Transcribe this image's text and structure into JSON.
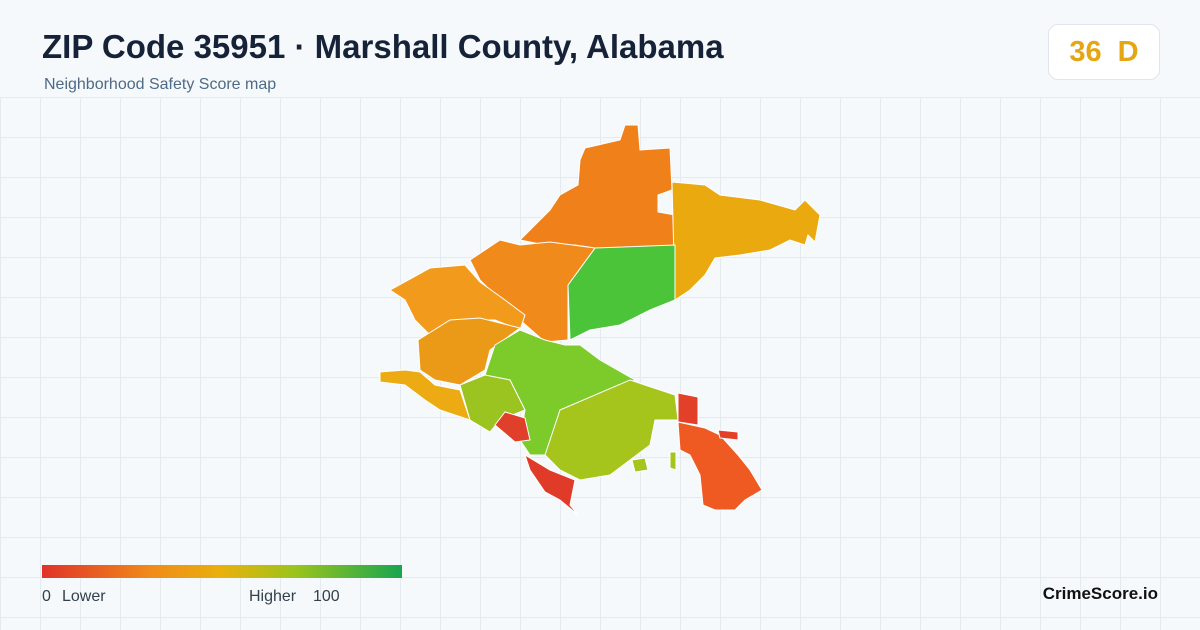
{
  "header": {
    "title": "ZIP Code 35951 · Marshall County, Alabama",
    "subtitle": "Neighborhood Safety Score map"
  },
  "score": {
    "value": 36,
    "grade": "D"
  },
  "legend": {
    "min": 0,
    "min_label": "Lower",
    "max_label": "Higher",
    "max": 100
  },
  "brand": "CrimeScore.io"
}
